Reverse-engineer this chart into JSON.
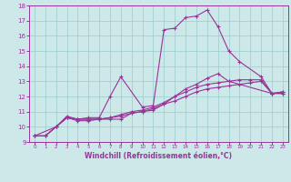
{
  "xlabel": "Windchill (Refroidissement éolien,°C)",
  "bg_color": "#cce8e8",
  "line_color": "#993399",
  "grid_color": "#99cccc",
  "xlim": [
    -0.5,
    23.5
  ],
  "ylim": [
    9,
    18
  ],
  "xticks": [
    0,
    1,
    2,
    3,
    4,
    5,
    6,
    7,
    8,
    9,
    10,
    11,
    12,
    13,
    14,
    15,
    16,
    17,
    18,
    19,
    20,
    21,
    22,
    23
  ],
  "yticks": [
    9,
    10,
    11,
    12,
    13,
    14,
    15,
    16,
    17,
    18
  ],
  "series": [
    {
      "x": [
        0,
        1,
        2,
        3,
        4,
        5,
        6,
        7,
        8,
        10,
        11,
        12,
        13,
        14,
        15,
        16,
        17,
        18,
        19,
        21,
        22,
        23
      ],
      "y": [
        9.4,
        9.4,
        10.0,
        10.7,
        10.5,
        10.6,
        10.6,
        12.0,
        13.3,
        11.3,
        11.4,
        16.4,
        16.5,
        17.2,
        17.3,
        17.7,
        16.6,
        15.0,
        14.3,
        13.3,
        12.2,
        12.3
      ]
    },
    {
      "x": [
        0,
        1,
        2,
        3,
        4,
        5,
        6,
        7,
        8,
        9,
        10,
        11,
        12,
        13,
        14,
        15,
        16,
        17,
        18,
        22,
        23
      ],
      "y": [
        9.4,
        9.4,
        10.0,
        10.6,
        10.5,
        10.5,
        10.5,
        10.5,
        10.5,
        10.9,
        11.0,
        11.1,
        11.5,
        12.0,
        12.5,
        12.8,
        13.2,
        13.5,
        13.0,
        12.2,
        12.2
      ]
    },
    {
      "x": [
        0,
        2,
        3,
        4,
        5,
        6,
        7,
        8,
        9,
        10,
        11,
        12,
        13,
        14,
        15,
        16,
        17,
        18,
        19,
        20,
        21,
        22,
        23
      ],
      "y": [
        9.4,
        10.0,
        10.6,
        10.5,
        10.5,
        10.5,
        10.6,
        10.7,
        10.9,
        11.0,
        11.2,
        11.5,
        11.7,
        12.0,
        12.3,
        12.5,
        12.6,
        12.7,
        12.8,
        12.9,
        13.0,
        12.2,
        12.3
      ]
    },
    {
      "x": [
        0,
        1,
        2,
        3,
        4,
        5,
        6,
        7,
        8,
        9,
        10,
        11,
        12,
        13,
        14,
        15,
        16,
        17,
        18,
        19,
        20,
        21,
        22,
        23
      ],
      "y": [
        9.4,
        9.4,
        10.0,
        10.6,
        10.4,
        10.4,
        10.5,
        10.6,
        10.8,
        11.0,
        11.1,
        11.3,
        11.6,
        12.0,
        12.3,
        12.6,
        12.8,
        12.9,
        13.0,
        13.1,
        13.1,
        13.1,
        12.2,
        12.2
      ]
    }
  ]
}
